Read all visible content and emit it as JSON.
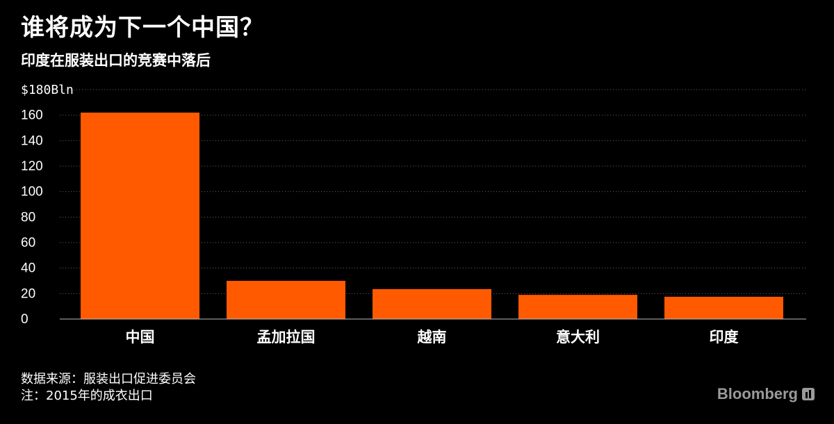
{
  "header": {
    "title": "谁将成为下一个中国？",
    "subtitle": "印度在服装出口的竞赛中落后"
  },
  "footer": {
    "source": "数据来源：服装出口促进委员会",
    "note": "注：2015年的成衣出口"
  },
  "brand": {
    "name": "Bloomberg"
  },
  "colors": {
    "bar": "#ff5a00",
    "background": "#000000",
    "grid": "#666666",
    "text": "#ffffff"
  },
  "chart_data": {
    "type": "bar",
    "categories": [
      "中国",
      "孟加拉国",
      "越南",
      "意大利",
      "印度"
    ],
    "values": [
      162,
      30,
      23.5,
      19,
      17.5
    ],
    "title": "谁将成为下一个中国？",
    "subtitle": "印度在服装出口的竞赛中落后",
    "ylim": [
      0,
      180
    ],
    "yticks": [
      0,
      20,
      40,
      60,
      80,
      100,
      120,
      140,
      160,
      180
    ],
    "ytick_labels": [
      "0",
      "20",
      "40",
      "60",
      "80",
      "100",
      "120",
      "140",
      "160",
      "$180Bln"
    ],
    "grid": true,
    "legend": "none"
  }
}
